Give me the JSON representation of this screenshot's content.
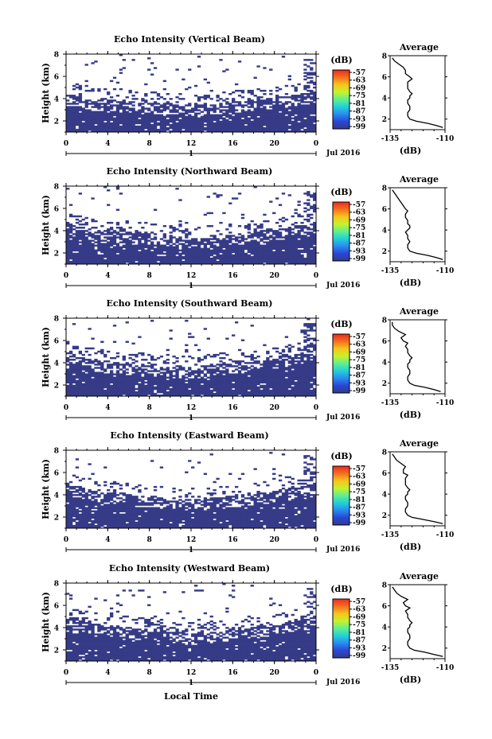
{
  "figure": {
    "xlabel": "Local Time",
    "date_label": "Jul 2016",
    "colorbar_unit": "(dB)",
    "colorbar_ticks": [
      "-57",
      "-63",
      "-69",
      "-75",
      "-81",
      "-87",
      "-93",
      "-99"
    ],
    "colorbar_colors": [
      "#ee2a1e",
      "#f4701f",
      "#f6c51c",
      "#c7f22b",
      "#5ef090",
      "#22d0d8",
      "#2a8bf0",
      "#2a46d6",
      "#303c8a"
    ],
    "echo_color": "#363b87"
  },
  "chart_data": [
    {
      "type": "heatmap",
      "title": "Echo Intensity (Vertical Beam)",
      "xlabel": "",
      "ylabel": "Height (km)",
      "xticks": [
        "0",
        "4",
        "8",
        "12",
        "16",
        "20",
        "0"
      ],
      "yticks": [
        "2",
        "4",
        "6",
        "8"
      ],
      "date_tick": "1",
      "echo_top_km": [
        4.4,
        4.3,
        4.0,
        3.9,
        3.9,
        3.8,
        3.8,
        3.7,
        3.6,
        3.6,
        3.6,
        3.5,
        3.4,
        3.4,
        3.5,
        3.6,
        3.7,
        3.8,
        3.9,
        4.0,
        4.1,
        4.2,
        4.3,
        4.5,
        4.6
      ]
    },
    {
      "type": "line",
      "title": "Average",
      "xlabel": "(dB)",
      "ylabel": "",
      "xticks": [
        "-135",
        "-110"
      ],
      "yticks": [
        "2",
        "4",
        "6",
        "8"
      ],
      "xlim": [
        -135,
        -110
      ],
      "ylim": [
        1,
        8
      ],
      "series": [
        {
          "x": [
            -111,
            -114,
            -118,
            -123,
            -126,
            -127,
            -127,
            -126,
            -126,
            -127,
            -127,
            -126,
            -126,
            -125,
            -126,
            -127,
            -127,
            -127,
            -125,
            -126,
            -128,
            -128,
            -129,
            -131,
            -133,
            -134
          ],
          "y": [
            1.2,
            1.4,
            1.6,
            1.8,
            2.0,
            2.3,
            2.6,
            2.9,
            3.2,
            3.5,
            3.8,
            4.0,
            4.2,
            4.4,
            4.6,
            4.9,
            5.2,
            5.5,
            5.8,
            6.0,
            6.3,
            6.6,
            6.9,
            7.2,
            7.5,
            7.8
          ]
        }
      ]
    },
    {
      "type": "heatmap",
      "title": "Echo Intensity (Northward Beam)",
      "xlabel": "",
      "ylabel": "Height (km)",
      "xticks": [
        "0",
        "4",
        "8",
        "12",
        "16",
        "20",
        "0"
      ],
      "yticks": [
        "2",
        "4",
        "6",
        "8"
      ],
      "date_tick": "1",
      "echo_top_km": [
        4.7,
        4.4,
        4.2,
        4.0,
        3.9,
        3.8,
        3.8,
        3.8,
        3.8,
        3.7,
        3.6,
        3.5,
        3.4,
        3.4,
        3.5,
        3.6,
        3.7,
        3.8,
        3.9,
        4.0,
        4.1,
        4.2,
        4.4,
        4.6,
        4.8
      ]
    },
    {
      "type": "line",
      "title": "Average",
      "xlabel": "(dB)",
      "ylabel": "",
      "xticks": [
        "-135",
        "-110"
      ],
      "yticks": [
        "2",
        "4",
        "6",
        "8"
      ],
      "xlim": [
        -135,
        -110
      ],
      "ylim": [
        1,
        8
      ],
      "series": [
        {
          "x": [
            -111,
            -114,
            -118,
            -123,
            -126,
            -127,
            -127,
            -126,
            -127,
            -127,
            -128,
            -127,
            -126,
            -126,
            -127,
            -127,
            -128,
            -128,
            -127,
            -128,
            -129,
            -130,
            -131,
            -132,
            -133,
            -134
          ],
          "y": [
            1.2,
            1.4,
            1.6,
            1.8,
            2.0,
            2.3,
            2.6,
            2.9,
            3.2,
            3.5,
            3.8,
            4.0,
            4.2,
            4.4,
            4.6,
            4.9,
            5.2,
            5.5,
            5.8,
            6.0,
            6.3,
            6.6,
            6.9,
            7.2,
            7.5,
            7.8
          ]
        }
      ]
    },
    {
      "type": "heatmap",
      "title": "Echo Intensity (Southward Beam)",
      "xlabel": "",
      "ylabel": "Height (km)",
      "xticks": [
        "0",
        "4",
        "8",
        "12",
        "16",
        "20",
        "0"
      ],
      "yticks": [
        "2",
        "4",
        "6",
        "8"
      ],
      "date_tick": "1",
      "echo_top_km": [
        4.9,
        4.6,
        4.4,
        4.2,
        4.1,
        4.0,
        3.9,
        3.9,
        3.8,
        3.8,
        3.7,
        3.6,
        3.6,
        3.7,
        3.8,
        3.9,
        4.0,
        4.0,
        4.1,
        4.2,
        4.4,
        4.6,
        4.8,
        5.0,
        5.2
      ]
    },
    {
      "type": "line",
      "title": "Average",
      "xlabel": "(dB)",
      "ylabel": "",
      "xticks": [
        "-135",
        "-110"
      ],
      "yticks": [
        "2",
        "4",
        "6",
        "8"
      ],
      "xlim": [
        -135,
        -110
      ],
      "ylim": [
        1,
        8
      ],
      "series": [
        {
          "x": [
            -112,
            -115,
            -119,
            -124,
            -126,
            -127,
            -127,
            -126,
            -126,
            -127,
            -127,
            -126,
            -126,
            -125,
            -126,
            -127,
            -127,
            -128,
            -127,
            -129,
            -130,
            -128,
            -131,
            -133,
            -134,
            -134
          ],
          "y": [
            1.2,
            1.4,
            1.6,
            1.8,
            2.0,
            2.3,
            2.6,
            2.9,
            3.2,
            3.5,
            3.8,
            4.0,
            4.2,
            4.4,
            4.6,
            4.9,
            5.2,
            5.5,
            5.8,
            6.0,
            6.3,
            6.6,
            6.9,
            7.2,
            7.5,
            7.8
          ]
        }
      ]
    },
    {
      "type": "heatmap",
      "title": "Echo Intensity (Eastward Beam)",
      "xlabel": "",
      "ylabel": "Height (km)",
      "xticks": [
        "0",
        "4",
        "8",
        "12",
        "16",
        "20",
        "0"
      ],
      "yticks": [
        "2",
        "4",
        "6",
        "8"
      ],
      "date_tick": "1",
      "echo_top_km": [
        5.0,
        4.7,
        4.5,
        4.3,
        4.2,
        4.1,
        4.0,
        3.9,
        3.9,
        3.8,
        3.7,
        3.6,
        3.6,
        3.6,
        3.7,
        3.8,
        3.9,
        4.0,
        4.1,
        4.2,
        4.3,
        4.5,
        4.7,
        4.9,
        5.1
      ]
    },
    {
      "type": "line",
      "title": "Average",
      "xlabel": "(dB)",
      "ylabel": "",
      "xticks": [
        "-135",
        "-110"
      ],
      "yticks": [
        "2",
        "4",
        "6",
        "8"
      ],
      "xlim": [
        -135,
        -110
      ],
      "ylim": [
        1,
        8
      ],
      "series": [
        {
          "x": [
            -111,
            -115,
            -120,
            -125,
            -127,
            -128,
            -128,
            -127,
            -127,
            -128,
            -128,
            -127,
            -127,
            -126,
            -127,
            -128,
            -128,
            -128,
            -127,
            -129,
            -129,
            -128,
            -130,
            -132,
            -133,
            -134
          ],
          "y": [
            1.2,
            1.4,
            1.6,
            1.8,
            2.0,
            2.3,
            2.6,
            2.9,
            3.2,
            3.5,
            3.8,
            4.0,
            4.2,
            4.4,
            4.6,
            4.9,
            5.2,
            5.5,
            5.8,
            6.0,
            6.3,
            6.6,
            6.9,
            7.2,
            7.5,
            7.8
          ]
        }
      ]
    },
    {
      "type": "heatmap",
      "title": "Echo Intensity (Westward Beam)",
      "xlabel": "",
      "ylabel": "Height (km)",
      "xticks": [
        "0",
        "4",
        "8",
        "12",
        "16",
        "20",
        "0"
      ],
      "yticks": [
        "2",
        "4",
        "6",
        "8"
      ],
      "date_tick": "1",
      "echo_top_km": [
        5.1,
        4.8,
        4.5,
        4.3,
        4.2,
        4.1,
        4.0,
        3.9,
        3.9,
        3.8,
        3.7,
        3.6,
        3.5,
        3.5,
        3.6,
        3.7,
        3.8,
        3.9,
        4.0,
        4.2,
        4.3,
        4.5,
        4.7,
        4.9,
        5.2
      ]
    },
    {
      "type": "line",
      "title": "Average",
      "xlabel": "(dB)",
      "ylabel": "",
      "xticks": [
        "-135",
        "-110"
      ],
      "yticks": [
        "2",
        "4",
        "6",
        "8"
      ],
      "xlim": [
        -135,
        -110
      ],
      "ylim": [
        1,
        8
      ],
      "series": [
        {
          "x": [
            -111,
            -115,
            -119,
            -124,
            -126,
            -127,
            -127,
            -126,
            -126,
            -127,
            -127,
            -126,
            -126,
            -125,
            -126,
            -127,
            -127,
            -128,
            -126,
            -128,
            -129,
            -127,
            -130,
            -132,
            -133,
            -134
          ],
          "y": [
            1.2,
            1.4,
            1.6,
            1.8,
            2.0,
            2.3,
            2.6,
            2.9,
            3.2,
            3.5,
            3.8,
            4.0,
            4.2,
            4.4,
            4.6,
            4.9,
            5.2,
            5.5,
            5.8,
            6.0,
            6.3,
            6.6,
            6.9,
            7.2,
            7.5,
            7.8
          ]
        }
      ]
    }
  ]
}
